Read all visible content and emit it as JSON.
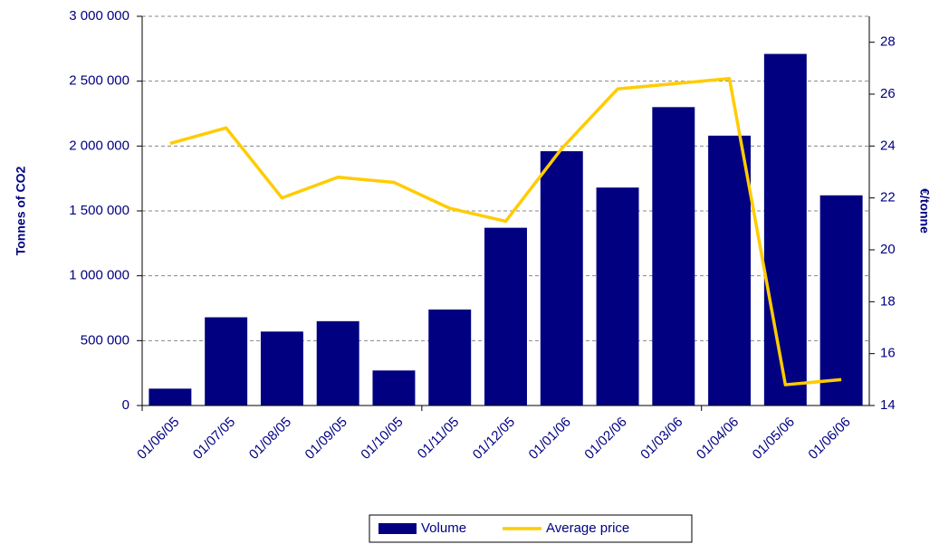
{
  "chart_data": {
    "type": "bar_line",
    "categories": [
      "01/06/05",
      "01/07/05",
      "01/08/05",
      "01/09/05",
      "01/10/05",
      "01/11/05",
      "01/12/05",
      "01/01/06",
      "01/02/06",
      "01/03/06",
      "01/04/06",
      "01/05/06",
      "01/06/06"
    ],
    "series": [
      {
        "name": "Volume",
        "type": "bar",
        "color": "#000080",
        "values": [
          130000,
          680000,
          570000,
          650000,
          270000,
          740000,
          1370000,
          1960000,
          1680000,
          2300000,
          2080000,
          2710000,
          1620000
        ]
      },
      {
        "name": "Average price",
        "type": "line",
        "axis": "y2",
        "color": "#ffcc00",
        "values": [
          24.1,
          24.7,
          22.0,
          22.8,
          22.6,
          21.6,
          21.1,
          23.9,
          26.2,
          26.4,
          26.6,
          14.8,
          15.0
        ]
      }
    ],
    "ylabel": "Tonnes of CO2",
    "y2label": "€/tonne",
    "ylim": [
      0,
      3000000
    ],
    "yticks": [
      0,
      {
        "value": 500000,
        "label": "500 000"
      },
      {
        "value": 1000000,
        "label": "1 000 000"
      },
      {
        "value": 1500000,
        "label": "1 500 000"
      },
      {
        "value": 2000000,
        "label": "2 000 000"
      },
      {
        "value": 2500000,
        "label": "2 500 000"
      },
      {
        "value": 3000000,
        "label": "3 000 000"
      }
    ],
    "y2lim": [
      14,
      29
    ],
    "y2ticks": [
      14,
      16,
      18,
      20,
      22,
      24,
      26,
      28
    ],
    "grid": true,
    "legend": "bottom"
  }
}
